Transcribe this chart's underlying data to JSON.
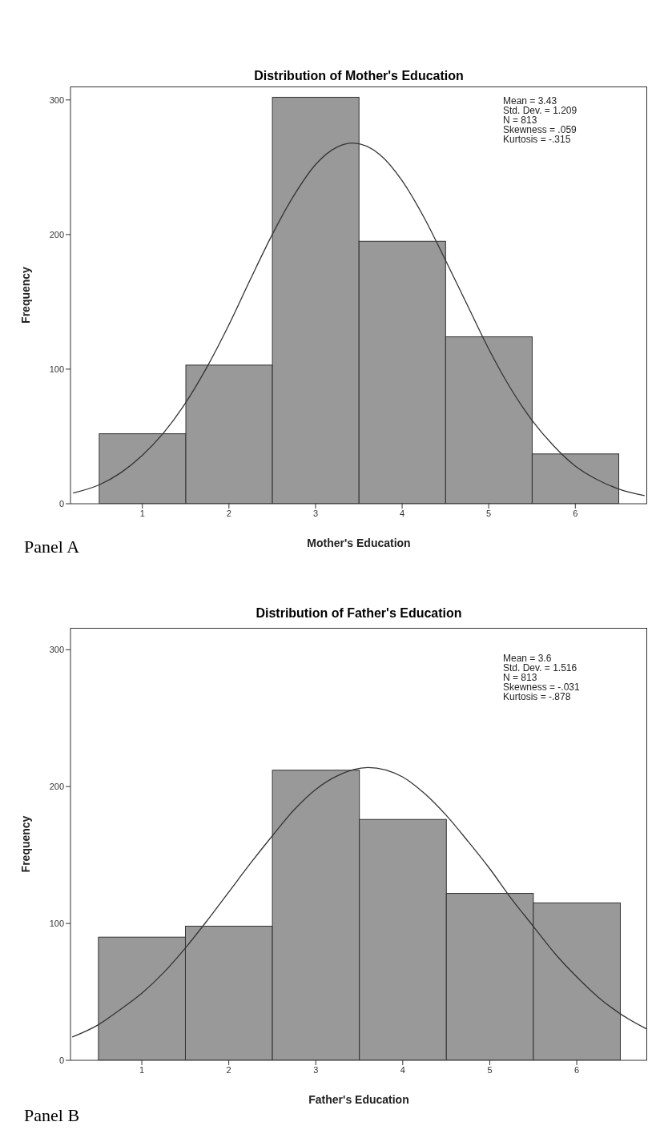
{
  "chart_data": [
    {
      "type": "histogram",
      "title": "Distribution of Mother's Education",
      "xlabel": "Mother's Education",
      "ylabel": "Frequency",
      "bins": [
        0.5,
        1.5,
        2.5,
        3.5,
        4.5,
        5.5,
        6.5
      ],
      "values": [
        52,
        103,
        302,
        195,
        124,
        37
      ],
      "color": "#999999",
      "xlim": [
        0.17,
        6.83
      ],
      "xticks": [
        1,
        2,
        3,
        4,
        5,
        6
      ],
      "ylim": [
        0,
        310
      ],
      "yticks": [
        0,
        100,
        200,
        300
      ],
      "series": [
        {
          "type": "line",
          "color": "#333333",
          "x": [
            0.2,
            0.5,
            0.75,
            1,
            1.25,
            1.5,
            1.75,
            2,
            2.25,
            2.5,
            2.75,
            3,
            3.25,
            3.43,
            3.75,
            4,
            4.25,
            4.5,
            4.75,
            5,
            5.25,
            5.5,
            5.75,
            6,
            6.25,
            6.5,
            6.8
          ],
          "values": [
            8,
            14,
            23,
            36,
            53,
            75,
            102,
            133,
            167,
            200,
            229,
            252,
            265,
            268,
            259,
            240,
            213,
            181,
            148,
            115,
            86,
            62,
            43,
            28,
            18,
            11,
            6
          ]
        }
      ],
      "annotations": [
        "Mean = 3.43",
        "Std. Dev. = 1.209",
        "N = 813",
        "Skewness = .059",
        "Kurtosis = -.315",
        "Panel A"
      ]
    },
    {
      "type": "histogram",
      "title": "Distribution of Father's Education",
      "xlabel": "Father's Education",
      "ylabel": "Frequency",
      "bins": [
        0.5,
        1.5,
        2.5,
        3.5,
        4.5,
        5.5,
        6.5
      ],
      "values": [
        90,
        98,
        212,
        176,
        122,
        115
      ],
      "color": "#999999",
      "xlim": [
        0.18,
        6.81
      ],
      "xticks": [
        1,
        2,
        3,
        4,
        5,
        6
      ],
      "ylim": [
        0,
        316
      ],
      "yticks": [
        0,
        100,
        200,
        300
      ],
      "series": [
        {
          "type": "line",
          "color": "#333333",
          "x": [
            0.2,
            0.5,
            0.75,
            1,
            1.25,
            1.5,
            1.75,
            2,
            2.25,
            2.5,
            2.75,
            3,
            3.25,
            3.6,
            4,
            4.25,
            4.5,
            4.75,
            5,
            5.25,
            5.5,
            5.75,
            6,
            6.25,
            6.5,
            6.8
          ],
          "values": [
            17,
            26,
            37,
            49,
            64,
            82,
            102,
            123,
            144,
            164,
            183,
            198,
            208,
            214,
            207,
            195,
            179,
            160,
            140,
            118,
            98,
            78,
            61,
            46,
            34,
            23
          ]
        }
      ],
      "annotations": [
        "Mean = 3.6",
        "Std. Dev. = 1.516",
        "N = 813",
        "Skewness = -.031",
        "Kurtosis = -.878",
        "Panel B"
      ]
    }
  ]
}
